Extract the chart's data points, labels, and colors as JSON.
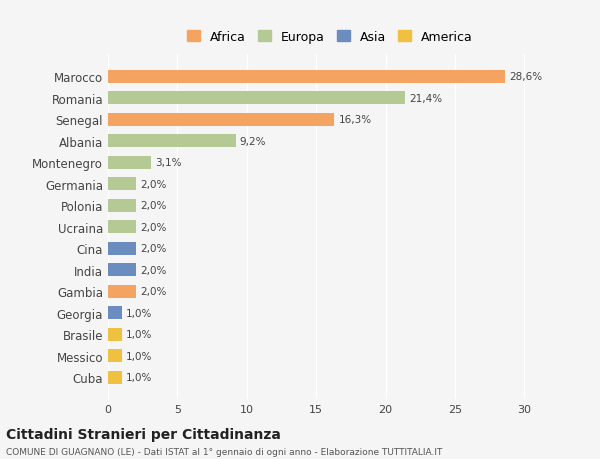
{
  "countries": [
    "Marocco",
    "Romania",
    "Senegal",
    "Albania",
    "Montenegro",
    "Germania",
    "Polonia",
    "Ucraina",
    "Cina",
    "India",
    "Gambia",
    "Georgia",
    "Brasile",
    "Messico",
    "Cuba"
  ],
  "values": [
    28.6,
    21.4,
    16.3,
    9.2,
    3.1,
    2.0,
    2.0,
    2.0,
    2.0,
    2.0,
    2.0,
    1.0,
    1.0,
    1.0,
    1.0
  ],
  "labels": [
    "28,6%",
    "21,4%",
    "16,3%",
    "9,2%",
    "3,1%",
    "2,0%",
    "2,0%",
    "2,0%",
    "2,0%",
    "2,0%",
    "2,0%",
    "1,0%",
    "1,0%",
    "1,0%",
    "1,0%"
  ],
  "continents": [
    "Africa",
    "Europa",
    "Africa",
    "Europa",
    "Europa",
    "Europa",
    "Europa",
    "Europa",
    "Asia",
    "Asia",
    "Africa",
    "Asia",
    "America",
    "America",
    "America"
  ],
  "colors": {
    "Africa": "#F4A460",
    "Europa": "#B5C994",
    "Asia": "#6B8CBE",
    "America": "#F0C040"
  },
  "legend_colors": {
    "Africa": "#F4A460",
    "Europa": "#B5C994",
    "Asia": "#6B8CBE",
    "America": "#F0C040"
  },
  "background_color": "#f5f5f5",
  "title": "Cittadini Stranieri per Cittadinanza",
  "subtitle": "COMUNE DI GUAGNANO (LE) - Dati ISTAT al 1° gennaio di ogni anno - Elaborazione TUTTITALIA.IT",
  "xlim": [
    0,
    32
  ],
  "xticks": [
    0,
    5,
    10,
    15,
    20,
    25,
    30
  ]
}
